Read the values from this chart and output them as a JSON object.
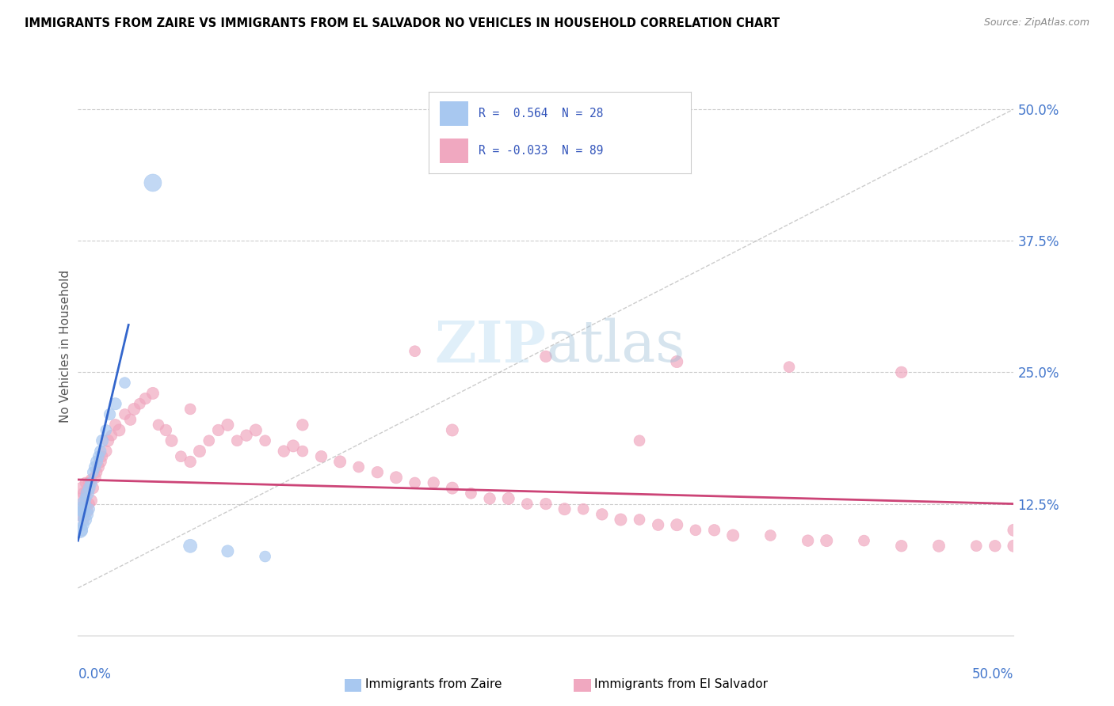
{
  "title": "IMMIGRANTS FROM ZAIRE VS IMMIGRANTS FROM EL SALVADOR NO VEHICLES IN HOUSEHOLD CORRELATION CHART",
  "source": "Source: ZipAtlas.com",
  "ylabel": "No Vehicles in Household",
  "yticks": [
    "12.5%",
    "25.0%",
    "37.5%",
    "50.0%"
  ],
  "ytick_vals": [
    0.125,
    0.25,
    0.375,
    0.5
  ],
  "xrange": [
    0.0,
    0.5
  ],
  "yrange": [
    0.0,
    0.55
  ],
  "color_blue": "#a8c8f0",
  "color_pink": "#f0a8c0",
  "line_blue": "#3366cc",
  "line_pink": "#cc4477",
  "watermark": "ZIPatlas",
  "zaire_x": [
    0.001,
    0.001,
    0.002,
    0.002,
    0.003,
    0.003,
    0.003,
    0.004,
    0.004,
    0.005,
    0.005,
    0.006,
    0.006,
    0.007,
    0.008,
    0.009,
    0.01,
    0.011,
    0.012,
    0.013,
    0.015,
    0.017,
    0.02,
    0.025,
    0.04,
    0.06,
    0.08,
    0.1
  ],
  "zaire_y": [
    0.1,
    0.115,
    0.1,
    0.12,
    0.105,
    0.118,
    0.125,
    0.11,
    0.13,
    0.115,
    0.135,
    0.12,
    0.14,
    0.145,
    0.155,
    0.16,
    0.165,
    0.17,
    0.175,
    0.185,
    0.195,
    0.21,
    0.22,
    0.24,
    0.43,
    0.085,
    0.08,
    0.075
  ],
  "zaire_sizes": [
    200,
    150,
    120,
    180,
    100,
    140,
    160,
    130,
    110,
    120,
    140,
    100,
    120,
    110,
    100,
    110,
    120,
    100,
    110,
    120,
    100,
    110,
    120,
    100,
    250,
    150,
    120,
    100
  ],
  "salvador_x": [
    0.001,
    0.001,
    0.002,
    0.002,
    0.003,
    0.003,
    0.004,
    0.004,
    0.005,
    0.005,
    0.006,
    0.006,
    0.007,
    0.007,
    0.008,
    0.009,
    0.01,
    0.011,
    0.012,
    0.013,
    0.015,
    0.016,
    0.018,
    0.02,
    0.022,
    0.025,
    0.028,
    0.03,
    0.033,
    0.036,
    0.04,
    0.043,
    0.047,
    0.05,
    0.055,
    0.06,
    0.065,
    0.07,
    0.075,
    0.08,
    0.085,
    0.09,
    0.095,
    0.1,
    0.11,
    0.115,
    0.12,
    0.13,
    0.14,
    0.15,
    0.16,
    0.17,
    0.18,
    0.19,
    0.2,
    0.21,
    0.22,
    0.23,
    0.24,
    0.25,
    0.26,
    0.27,
    0.28,
    0.29,
    0.3,
    0.31,
    0.32,
    0.33,
    0.34,
    0.35,
    0.37,
    0.39,
    0.4,
    0.42,
    0.44,
    0.46,
    0.48,
    0.49,
    0.5,
    0.18,
    0.25,
    0.32,
    0.38,
    0.44,
    0.5,
    0.06,
    0.12,
    0.2,
    0.3
  ],
  "salvador_y": [
    0.115,
    0.13,
    0.12,
    0.14,
    0.11,
    0.135,
    0.125,
    0.145,
    0.118,
    0.138,
    0.125,
    0.145,
    0.128,
    0.148,
    0.14,
    0.15,
    0.155,
    0.16,
    0.165,
    0.17,
    0.175,
    0.185,
    0.19,
    0.2,
    0.195,
    0.21,
    0.205,
    0.215,
    0.22,
    0.225,
    0.23,
    0.2,
    0.195,
    0.185,
    0.17,
    0.165,
    0.175,
    0.185,
    0.195,
    0.2,
    0.185,
    0.19,
    0.195,
    0.185,
    0.175,
    0.18,
    0.175,
    0.17,
    0.165,
    0.16,
    0.155,
    0.15,
    0.145,
    0.145,
    0.14,
    0.135,
    0.13,
    0.13,
    0.125,
    0.125,
    0.12,
    0.12,
    0.115,
    0.11,
    0.11,
    0.105,
    0.105,
    0.1,
    0.1,
    0.095,
    0.095,
    0.09,
    0.09,
    0.09,
    0.085,
    0.085,
    0.085,
    0.085,
    0.085,
    0.27,
    0.265,
    0.26,
    0.255,
    0.25,
    0.1,
    0.215,
    0.2,
    0.195,
    0.185
  ],
  "salvador_sizes": [
    120,
    100,
    110,
    120,
    100,
    110,
    120,
    100,
    110,
    120,
    100,
    110,
    120,
    100,
    110,
    120,
    100,
    110,
    120,
    100,
    110,
    120,
    100,
    110,
    120,
    100,
    110,
    120,
    100,
    110,
    120,
    100,
    110,
    120,
    100,
    110,
    120,
    100,
    110,
    120,
    100,
    110,
    120,
    100,
    110,
    120,
    100,
    110,
    120,
    100,
    110,
    120,
    100,
    110,
    120,
    100,
    110,
    120,
    100,
    110,
    120,
    100,
    110,
    120,
    100,
    110,
    120,
    100,
    110,
    120,
    100,
    110,
    120,
    100,
    110,
    120,
    100,
    110,
    120,
    100,
    110,
    120,
    100,
    110,
    120,
    100,
    110,
    120,
    100
  ]
}
